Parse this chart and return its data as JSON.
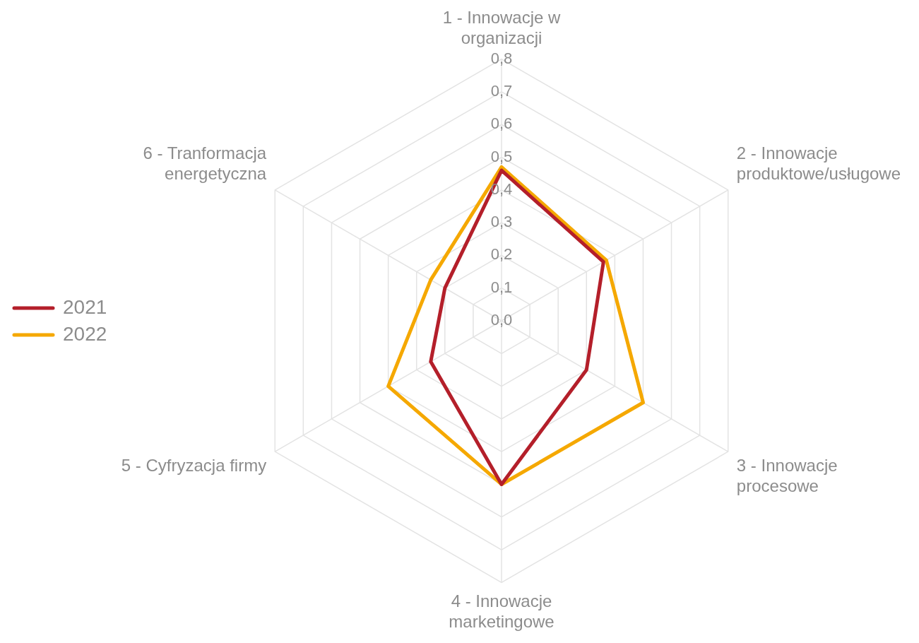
{
  "chart_data": {
    "type": "radar",
    "categories": [
      "1 - Innowacje w organizacji",
      "2 - Innowacje produktowe/usługowe",
      "3 -  Innowacje procesowe",
      "4 - Innowacje marketingowe",
      "5 - Cyfryzacja firmy",
      "6 - Tranformacja energetyczna"
    ],
    "series": [
      {
        "name": "2021",
        "color": "#b41f2a",
        "values": [
          0.46,
          0.36,
          0.3,
          0.5,
          0.25,
          0.2
        ]
      },
      {
        "name": "2022",
        "color": "#f5a800",
        "values": [
          0.47,
          0.37,
          0.5,
          0.5,
          0.4,
          0.25
        ]
      }
    ],
    "ylim": [
      0,
      0.8
    ],
    "yticks": [
      {
        "value": 0,
        "label": "0,0"
      },
      {
        "value": 0.1,
        "label": "0,1"
      },
      {
        "value": 0.2,
        "label": "0,2"
      },
      {
        "value": 0.3,
        "label": "0,3"
      },
      {
        "value": 0.4,
        "label": "0,4"
      },
      {
        "value": 0.5,
        "label": "0,5"
      },
      {
        "value": 0.6,
        "label": "0,6"
      },
      {
        "value": 0.7,
        "label": "0,7"
      },
      {
        "value": 0.8,
        "label": "0,8"
      }
    ],
    "grid": true,
    "legend": "left",
    "marker": "none",
    "line_style": "solid"
  }
}
